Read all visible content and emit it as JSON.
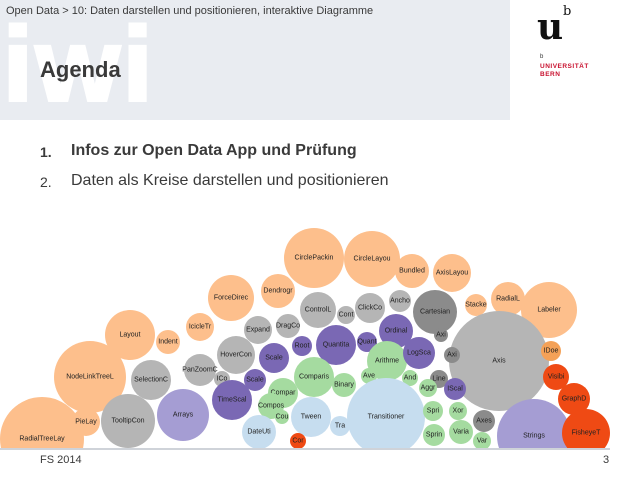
{
  "header": {
    "watermark": "iwi",
    "breadcrumb": "Open Data > 10: Daten darstellen und positionieren, interaktive Diagramme",
    "title": "Agenda"
  },
  "logo": {
    "mark": "u",
    "sup": "b",
    "small_b": "b",
    "line1": "UNIVERSITÄT",
    "line2": "BERN"
  },
  "agenda": [
    {
      "number": "1.",
      "text": "Infos zur Open Data App und Prüfung"
    },
    {
      "number": "2.",
      "text": "Daten als Kreise darstellen und positionieren"
    }
  ],
  "colors": {
    "orange": "#fdbf8c",
    "darkorange": "#f4a157",
    "red": "#ef4a14",
    "gray": "#b5b5b5",
    "darkgray": "#8b8b8b",
    "purple": "#7a68b4",
    "lightpurple": "#a59dd3",
    "green": "#a5dba0",
    "lightblue": "#c6ddef",
    "blue": "#8fb8de"
  },
  "bubbles": [
    {
      "label": "CirclePackin",
      "color": "orange"
    },
    {
      "label": "CircleLayou",
      "color": "orange"
    },
    {
      "label": "Bundled",
      "color": "orange"
    },
    {
      "label": "AxisLayou",
      "color": "orange"
    },
    {
      "label": "ForceDirec",
      "color": "orange"
    },
    {
      "label": "Dendrogr",
      "color": "orange"
    },
    {
      "label": "ControlL",
      "color": "gray"
    },
    {
      "label": "Cont",
      "color": "gray"
    },
    {
      "label": "ClickCo",
      "color": "gray"
    },
    {
      "label": "Ancho",
      "color": "gray"
    },
    {
      "label": "Cartesian",
      "color": "darkgray"
    },
    {
      "label": "Stacke",
      "color": "orange"
    },
    {
      "label": "RadialL",
      "color": "orange"
    },
    {
      "label": "Labeler",
      "color": "orange"
    },
    {
      "label": "Layout",
      "color": "orange"
    },
    {
      "label": "IcicleTr",
      "color": "orange"
    },
    {
      "label": "Expand",
      "color": "gray"
    },
    {
      "label": "DragCo",
      "color": "gray"
    },
    {
      "label": "Indent",
      "color": "orange"
    },
    {
      "label": "HoverCon",
      "color": "gray"
    },
    {
      "label": "Scale",
      "color": "purple"
    },
    {
      "label": "Root",
      "color": "purple"
    },
    {
      "label": "Quantita",
      "color": "purple"
    },
    {
      "label": "Quant",
      "color": "purple"
    },
    {
      "label": "Ordinal",
      "color": "purple"
    },
    {
      "label": "Axi",
      "color": "darkgray"
    },
    {
      "label": "Line",
      "color": "darkgray"
    },
    {
      "label": "Axis",
      "color": "gray"
    },
    {
      "label": "IDoe",
      "color": "darkorange"
    },
    {
      "label": "NodeLinkTreeL",
      "color": "orange"
    },
    {
      "label": "SelectionC",
      "color": "gray"
    },
    {
      "label": "PanZoomC",
      "color": "gray"
    },
    {
      "label": "ICo",
      "color": "gray"
    },
    {
      "label": "Scale",
      "color": "purple"
    },
    {
      "label": "Compar",
      "color": "green"
    },
    {
      "label": "Comparis",
      "color": "green"
    },
    {
      "label": "Binary",
      "color": "green"
    },
    {
      "label": "Arithme",
      "color": "green"
    },
    {
      "label": "Ave",
      "color": "green"
    },
    {
      "label": "LogSca",
      "color": "purple"
    },
    {
      "label": "Axi",
      "color": "darkgray"
    },
    {
      "label": "And",
      "color": "green"
    },
    {
      "label": "Aggr",
      "color": "green"
    },
    {
      "label": "IScal",
      "color": "purple"
    },
    {
      "label": "Visibi",
      "color": "red"
    },
    {
      "label": "RadialTreeLay",
      "color": "orange"
    },
    {
      "label": "PieLay",
      "color": "orange"
    },
    {
      "label": "TooltipCon",
      "color": "gray"
    },
    {
      "label": "Arrays",
      "color": "lightpurple"
    },
    {
      "label": "TimeScal",
      "color": "purple"
    },
    {
      "label": "Compos",
      "color": "green"
    },
    {
      "label": "Transitioner",
      "color": "lightblue"
    },
    {
      "label": "Cou",
      "color": "green"
    },
    {
      "label": "Tween",
      "color": "lightblue"
    },
    {
      "label": "Tra",
      "color": "lightblue"
    },
    {
      "label": "DateUti",
      "color": "lightblue"
    },
    {
      "label": "Spri",
      "color": "green"
    },
    {
      "label": "Xor",
      "color": "green"
    },
    {
      "label": "Axes",
      "color": "darkgray"
    },
    {
      "label": "Sprin",
      "color": "green"
    },
    {
      "label": "Varia",
      "color": "green"
    },
    {
      "label": "Var",
      "color": "green"
    },
    {
      "label": "Strings",
      "color": "lightpurple"
    },
    {
      "label": "GraphD",
      "color": "red"
    },
    {
      "label": "FisheyeT",
      "color": "red"
    },
    {
      "label": "Cor",
      "color": "red"
    }
  ],
  "footer": {
    "left": "FS 2014",
    "page": "3"
  }
}
